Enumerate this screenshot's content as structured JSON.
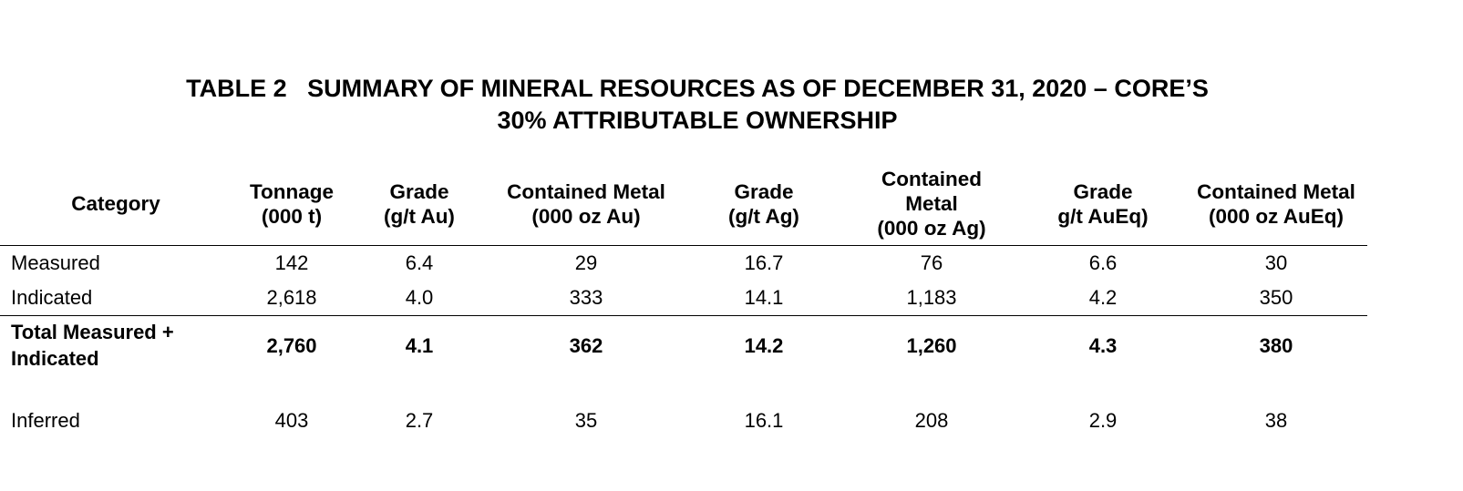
{
  "title": {
    "line1": "TABLE 2   SUMMARY OF MINERAL RESOURCES AS OF DECEMBER 31, 2020 – CORE’S",
    "line2": "30% ATTRIBUTABLE OWNERSHIP"
  },
  "table": {
    "headers": [
      [
        "Category"
      ],
      [
        "Tonnage",
        "(000 t)"
      ],
      [
        "Grade",
        "(g/t Au)"
      ],
      [
        "Contained Metal",
        "(000 oz Au)"
      ],
      [
        "Grade",
        "(g/t Ag)"
      ],
      [
        "Contained",
        "Metal",
        "(000 oz Ag)"
      ],
      [
        "Grade",
        "g/t AuEq)"
      ],
      [
        "Contained Metal",
        "(000 oz AuEq)"
      ]
    ],
    "rows": [
      [
        "Measured",
        "142",
        "6.4",
        "29",
        "16.7",
        "76",
        "6.6",
        "30"
      ],
      [
        "Indicated",
        "2,618",
        "4.0",
        "333",
        "14.1",
        "1,183",
        "4.2",
        "350"
      ],
      [
        "Total Measured +",
        "2,760",
        "4.1",
        "362",
        "14.2",
        "1,260",
        "4.3",
        "380"
      ],
      [
        "Inferred",
        "403",
        "2.7",
        "35",
        "16.1",
        "208",
        "2.9",
        "38"
      ]
    ],
    "total_label_line2": "Indicated"
  }
}
